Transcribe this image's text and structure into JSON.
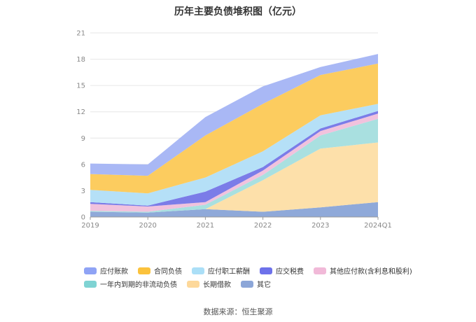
{
  "chart_data": {
    "type": "area",
    "stacked": true,
    "title": "历年主要负债堆积图（亿元）",
    "categories": [
      "2019",
      "2020",
      "2021",
      "2022",
      "2023",
      "2024Q1"
    ],
    "ylim": [
      0,
      21
    ],
    "yticks": [
      "0",
      "3",
      "6",
      "9",
      "12",
      "15",
      "18",
      "21"
    ],
    "grid": true,
    "legend_position": "bottom",
    "series": [
      {
        "name": "其它",
        "color": "#8fa9d9",
        "values": [
          0.6,
          0.5,
          0.9,
          0.6,
          1.1,
          1.7
        ]
      },
      {
        "name": "长期借款",
        "color": "#fde0aa",
        "values": [
          0,
          0,
          0,
          3.6,
          6.7,
          6.8
        ]
      },
      {
        "name": "一年内到期的非流动负债",
        "color": "#a9e0e0",
        "values": [
          0.1,
          0.1,
          0.5,
          0.6,
          1.5,
          2.7
        ]
      },
      {
        "name": "其他应付款(含利息和股利)",
        "color": "#f1c2dd",
        "values": [
          0.8,
          0.6,
          0.3,
          0.5,
          0.5,
          0.6
        ]
      },
      {
        "name": "应交税费",
        "color": "#7b7ce8",
        "values": [
          0.2,
          0.1,
          1.2,
          0.4,
          0.3,
          0.3
        ]
      },
      {
        "name": "应付职工薪酬",
        "color": "#b5e0f7",
        "values": [
          1.4,
          1.4,
          1.6,
          1.8,
          1.5,
          0.8
        ]
      },
      {
        "name": "合同负债",
        "color": "#fccc5f",
        "values": [
          1.8,
          2.0,
          4.8,
          5.4,
          4.6,
          4.6
        ]
      },
      {
        "name": "应付账款",
        "color": "#a9b8f5",
        "values": [
          1.2,
          1.3,
          2.1,
          2.0,
          0.9,
          1.1
        ]
      }
    ]
  },
  "legend_rows": [
    [
      {
        "label": "应付账款",
        "color": "#8fa3f5"
      },
      {
        "label": "合同负债",
        "color": "#fbc23c"
      },
      {
        "label": "应付职工薪酬",
        "color": "#abdff7"
      },
      {
        "label": "应交税费",
        "color": "#6d71ea"
      },
      {
        "label": "其他应付款(含利息和股利)",
        "color": "#f1b9d8"
      }
    ],
    [
      {
        "label": "一年内到期的非流动负债",
        "color": "#7fd3d3"
      },
      {
        "label": "长期借款",
        "color": "#fdd89a"
      },
      {
        "label": "其它",
        "color": "#8ca6d8"
      }
    ]
  ],
  "source": "数据来源：恒生聚源"
}
